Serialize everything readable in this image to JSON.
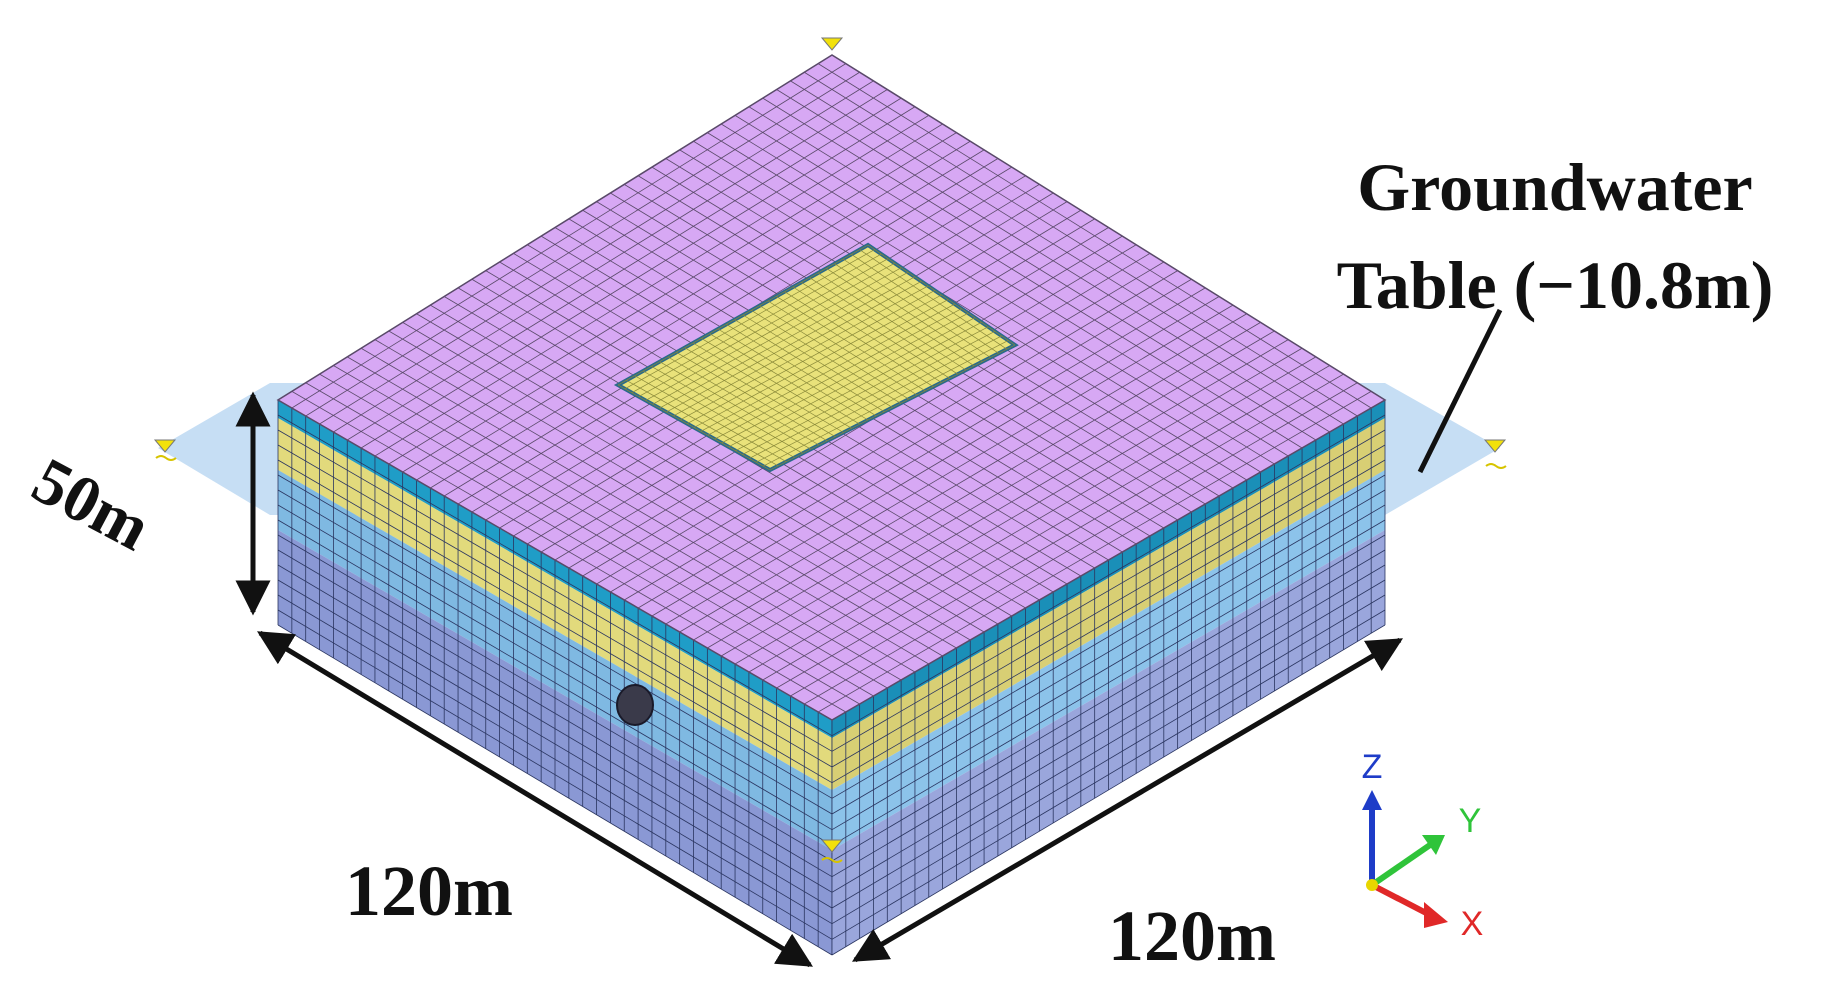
{
  "labels": {
    "groundwater_line1": "Groundwater",
    "groundwater_line2": "Table (−10.8m)",
    "height": "50m",
    "width_left": "120m",
    "width_right": "120m"
  },
  "axes": {
    "z": "Z",
    "y": "Y",
    "x": "X"
  },
  "colors": {
    "top_surface": "#d7a8f4",
    "excavation": "#e9e27a",
    "layer_top": "#1f9dc7",
    "layer_sand": "#e2da7c",
    "layer_clay": "#7fb9e2",
    "layer_base": "#8a98d4",
    "water_plane": "#bcd8f2",
    "axis_z": "#1e3cc8",
    "axis_y": "#2fc43a",
    "axis_x": "#e02828",
    "water_marker": "#f2e10b"
  }
}
